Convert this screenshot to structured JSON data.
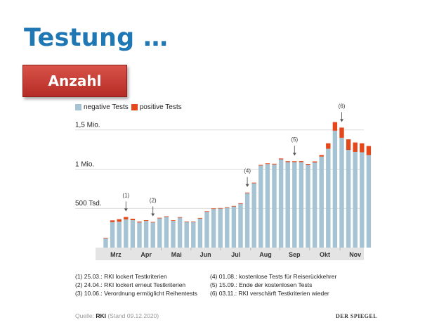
{
  "slide": {
    "title": "Testung …",
    "badge": "Anzahl"
  },
  "colors": {
    "negative": "#a5c3d3",
    "positive": "#e3471a",
    "title": "#1f78b4",
    "badge": "#c9332d"
  },
  "chart_data": {
    "type": "bar",
    "stacked": true,
    "title": "",
    "xlabel": "",
    "ylabel": "",
    "ylim": [
      0,
      1650000
    ],
    "y_ticks": [
      {
        "value": 500000,
        "label": "500 Tsd."
      },
      {
        "value": 1000000,
        "label": "1 Mio."
      },
      {
        "value": 1500000,
        "label": "1,5 Mio."
      }
    ],
    "month_labels": [
      "Mrz",
      "Apr",
      "Mai",
      "Jun",
      "Jul",
      "Aug",
      "Sep",
      "Okt",
      "Nov"
    ],
    "month_label_positions": [
      1.5,
      6,
      10.5,
      14.8,
      19.3,
      23.7,
      28,
      32.5,
      37
    ],
    "legend": [
      "negative Tests",
      "positive Tests"
    ],
    "series": [
      {
        "name": "negative Tests",
        "values": [
          120000,
          325000,
          330000,
          360000,
          350000,
          320000,
          340000,
          320000,
          375000,
          395000,
          345000,
          385000,
          330000,
          330000,
          375000,
          460000,
          495000,
          500000,
          510000,
          525000,
          560000,
          695000,
          820000,
          1045000,
          1065000,
          1060000,
          1125000,
          1090000,
          1090000,
          1090000,
          1055000,
          1085000,
          1160000,
          1260000,
          1490000,
          1400000,
          1245000,
          1220000,
          1215000,
          1180000
        ]
      },
      {
        "name": "positive Tests",
        "values": [
          4000,
          22000,
          32000,
          30000,
          18000,
          12000,
          9000,
          7000,
          5000,
          4000,
          3000,
          3000,
          2500,
          2500,
          2500,
          3000,
          4000,
          4000,
          5000,
          6000,
          6000,
          7000,
          8000,
          9000,
          9000,
          9000,
          11000,
          11000,
          11000,
          12000,
          12000,
          13000,
          20000,
          70000,
          110000,
          130000,
          135000,
          120000,
          115000,
          115000
        ]
      }
    ],
    "annotations": [
      {
        "label": "(1)",
        "index": 3
      },
      {
        "label": "(2)",
        "index": 7
      },
      {
        "label": "(4)",
        "index": 21
      },
      {
        "label": "(5)",
        "index": 28
      },
      {
        "label": "(6)",
        "index": 35
      }
    ]
  },
  "legend_labels": {
    "negative": "negative Tests",
    "positive": "positive Tests"
  },
  "notes": [
    "(1) 25.03.: RKI lockert Testkriterien",
    "(2) 24.04.: RKI lockert erneut Testkriterien",
    "(3) 10.06.: Verordnung ermöglicht Reihentests",
    "(4) 01.08.: kostenlose Tests für Reiserückkehrer",
    "(5) 15.09.: Ende der kostenlosen Tests",
    "(6) 03.11.: RKI verschärft Testkriterien wieder"
  ],
  "source": {
    "prefix": "Quelle:",
    "org": "RKI",
    "suffix": "(Stand 09.12.2020)"
  },
  "brand": "DER SPIEGEL"
}
